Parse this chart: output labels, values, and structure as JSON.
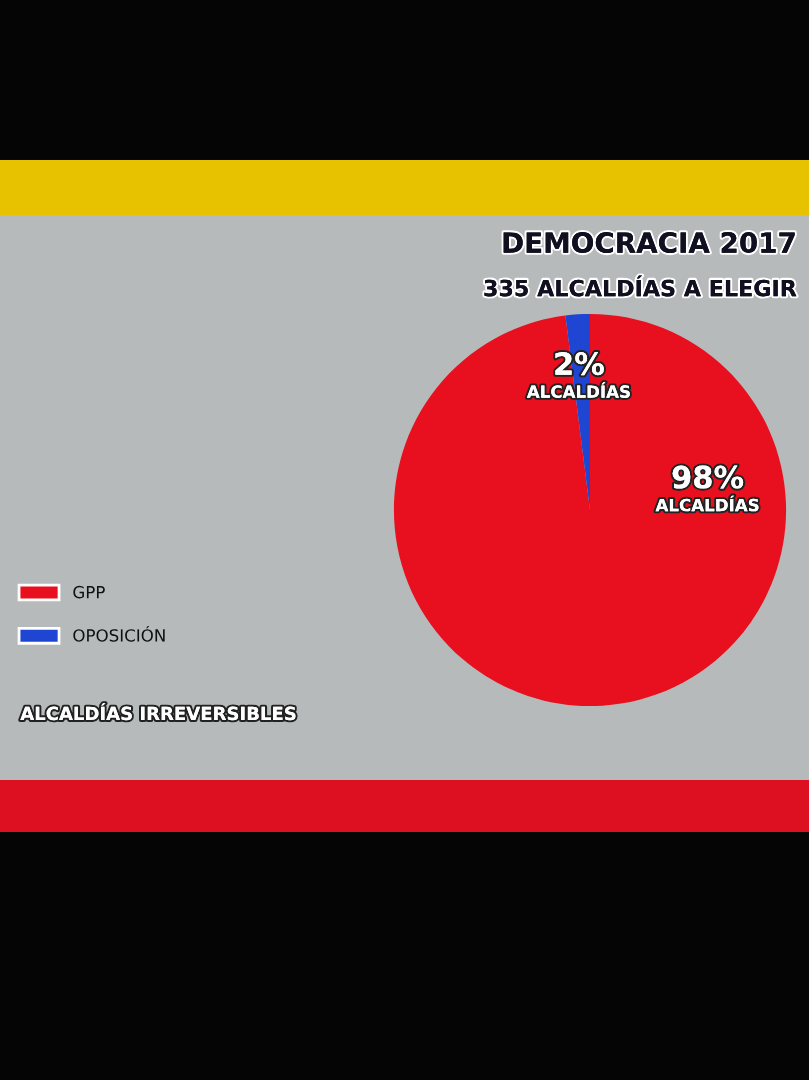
{
  "chart_data": {
    "type": "pie",
    "title": "DEMOCRACIA 2017",
    "subtitle": "335 ALCALDÍAS A ELEGIR",
    "categories": [
      "GPP",
      "OPOSICIÓN"
    ],
    "values": [
      98,
      2
    ],
    "colors": [
      "#e8101e",
      "#1e46d2"
    ],
    "value_labels": [
      "98%\nALCALDÍAS",
      "2%\nALCALDÍAS"
    ],
    "legend": "left",
    "annotations": [
      "ALCALDÍAS IRREVERSIBLES"
    ]
  }
}
